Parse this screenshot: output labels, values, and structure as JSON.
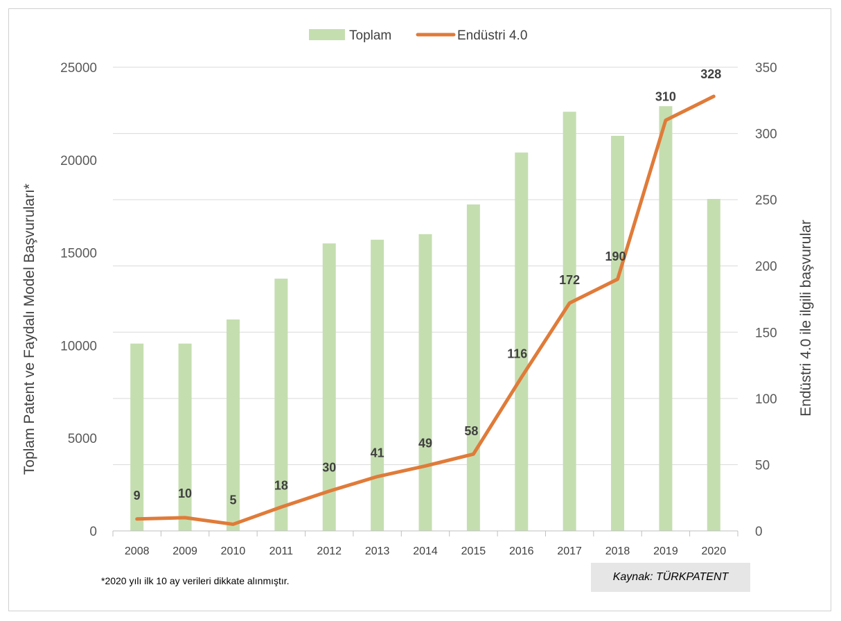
{
  "chart_data": {
    "type": "bar",
    "categories": [
      "2008",
      "2009",
      "2010",
      "2011",
      "2012",
      "2013",
      "2014",
      "2015",
      "2016",
      "2017",
      "2018",
      "2019",
      "2020"
    ],
    "series": [
      {
        "name": "Toplam",
        "type": "bar",
        "axis": "left",
        "color": "#c5deb0",
        "values": [
          10100,
          10100,
          11400,
          13600,
          15500,
          15700,
          16000,
          17600,
          20400,
          22600,
          21300,
          22900,
          17900
        ]
      },
      {
        "name": "Endüstri 4.0",
        "type": "line",
        "axis": "right",
        "color": "#e07b39",
        "values": [
          9,
          10,
          5,
          18,
          30,
          41,
          49,
          58,
          116,
          172,
          190,
          310,
          328
        ],
        "data_labels": [
          "9",
          "10",
          "5",
          "18",
          "30",
          "41",
          "49",
          "58",
          "116",
          "172",
          "190",
          "310",
          "328"
        ]
      }
    ],
    "ylabel_left": "Toplam Patent ve Faydalı Model Başvuruları*",
    "ylabel_right": "Endüstri 4.0 ile ilgili başvurular",
    "ylim_left": [
      0,
      25000
    ],
    "ylim_right": [
      0,
      350
    ],
    "yticks_left": [
      "0",
      "5000",
      "10000",
      "15000",
      "20000",
      "25000"
    ],
    "yticks_right": [
      "0",
      "50",
      "100",
      "150",
      "200",
      "250",
      "300",
      "350"
    ],
    "grid": true,
    "legend": "top-center"
  },
  "footnote": "*2020 yılı ilk 10 ay verileri dikkate alınmıştır.",
  "source": "Kaynak: TÜRKPATENT"
}
